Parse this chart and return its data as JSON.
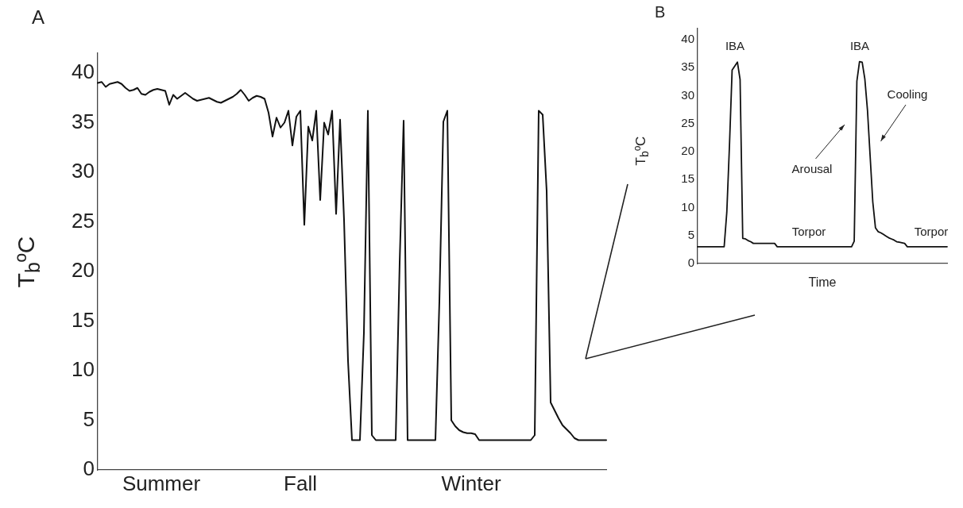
{
  "chart_data": [
    {
      "type": "line",
      "title": "A",
      "ylabel": "T$_{b}$ºC",
      "categories": [
        null,
        null,
        null,
        null,
        null,
        null,
        null,
        null,
        null,
        null,
        null,
        null,
        null,
        null,
        null,
        null,
        "Summer",
        null,
        null,
        null,
        null,
        null,
        null,
        null,
        null,
        null,
        null,
        null,
        null,
        null,
        null,
        null,
        null,
        null,
        null,
        null,
        null,
        null,
        null,
        null,
        null,
        null,
        null,
        null,
        null,
        null,
        null,
        null,
        null,
        null,
        null,
        "Fall",
        null,
        null,
        null,
        null,
        null,
        null,
        null,
        null,
        null,
        null,
        null,
        null,
        null,
        null,
        null,
        null,
        null,
        null,
        null,
        null,
        null,
        null,
        null,
        null,
        null,
        null,
        null,
        null,
        null,
        null,
        null,
        null,
        null,
        null,
        null,
        null,
        null,
        null,
        null,
        null,
        null,
        null,
        "Winter",
        null,
        null,
        null,
        null,
        null,
        null,
        null,
        null,
        null,
        null,
        null,
        null,
        null,
        null,
        null,
        null,
        null,
        null,
        null,
        null,
        null,
        null,
        null,
        null,
        null,
        null,
        null,
        null,
        null,
        null,
        null,
        null,
        null,
        null
      ],
      "series": [
        {
          "color": "#111111",
          "values": [
            39.0,
            39.1,
            38.6,
            38.9,
            39.0,
            39.1,
            38.9,
            38.5,
            38.2,
            38.3,
            38.5,
            37.9,
            37.8,
            38.1,
            38.3,
            38.4,
            38.3,
            38.2,
            36.8,
            37.8,
            37.4,
            37.7,
            38.0,
            37.7,
            37.4,
            37.2,
            37.3,
            37.4,
            37.5,
            37.3,
            37.1,
            37.0,
            37.2,
            37.4,
            37.6,
            37.9,
            38.3,
            37.8,
            37.2,
            37.5,
            37.7,
            37.6,
            37.4,
            36.0,
            33.6,
            35.5,
            34.5,
            35.0,
            36.2,
            32.7,
            35.6,
            36.2,
            24.7,
            34.6,
            33.2,
            36.2,
            27.2,
            35.0,
            33.8,
            36.2,
            25.8,
            35.3,
            25.2,
            11,
            3,
            3,
            3,
            13.8,
            36.2,
            3.5,
            3,
            3,
            3,
            3,
            3,
            3,
            20.9,
            35.2,
            3,
            3,
            3,
            3,
            3,
            3,
            3,
            3,
            17,
            35.1,
            36.2,
            5.0,
            4.4,
            4.0,
            3.8,
            3.7,
            3.7,
            3.6,
            3,
            3,
            3,
            3,
            3,
            3,
            3,
            3,
            3,
            3,
            3,
            3,
            3,
            3,
            3.5,
            36.2,
            35.8,
            28.1,
            6.8,
            6.0,
            5.2,
            4.5,
            4.1,
            3.7,
            3.2,
            3,
            3,
            3,
            3,
            3,
            3,
            3,
            3
          ]
        }
      ],
      "ylim": [
        0,
        42
      ],
      "yticks": [
        0,
        5,
        10,
        15,
        20,
        25,
        30,
        35,
        40
      ],
      "grid": false,
      "marker": "none",
      "line_style": "solid"
    },
    {
      "type": "line",
      "title": "B",
      "ylabel": "T$_{b}$ºC",
      "xlabel": "Time",
      "categories": [
        null,
        null,
        null,
        null,
        null,
        null,
        null,
        null,
        null,
        null,
        null,
        null,
        null,
        null,
        null,
        null,
        null,
        null,
        null,
        null,
        null,
        null,
        null,
        null,
        null,
        null,
        null,
        null,
        null,
        null,
        null,
        null,
        null,
        null,
        null,
        null,
        null,
        null,
        null,
        null,
        null,
        null,
        null,
        null,
        null,
        null,
        null,
        null,
        null,
        null,
        null,
        null,
        null,
        null,
        null,
        null,
        null,
        null,
        null,
        null,
        null,
        null,
        null,
        null,
        null,
        null,
        null,
        null,
        null,
        null,
        null,
        null,
        null,
        null,
        null,
        null,
        null,
        null,
        null,
        null,
        null,
        null,
        null,
        null,
        null,
        null,
        null,
        null,
        null,
        null,
        null,
        null,
        null,
        null,
        null
      ],
      "series": [
        {
          "color": "#111111",
          "values": [
            3,
            3,
            3,
            3,
            3,
            3,
            3,
            3,
            3,
            3,
            3,
            9.2,
            21.1,
            34.6,
            35.3,
            36.0,
            32.9,
            4.5,
            4.4,
            4.1,
            3.9,
            3.6,
            3.6,
            3.6,
            3.6,
            3.6,
            3.6,
            3.6,
            3.6,
            3.6,
            3,
            3,
            3,
            3,
            3,
            3,
            3,
            3,
            3,
            3,
            3,
            3,
            3,
            3,
            3,
            3,
            3,
            3,
            3,
            3,
            3,
            3,
            3,
            3,
            3,
            3,
            3,
            3,
            3,
            4.0,
            32.6,
            36.1,
            36.0,
            33,
            27.4,
            19.2,
            11.0,
            6.4,
            5.7,
            5.5,
            5.2,
            4.9,
            4.6,
            4.4,
            4.2,
            3.9,
            3.8,
            3.7,
            3.6,
            3,
            3,
            3,
            3,
            3,
            3,
            3,
            3,
            3,
            3,
            3,
            3,
            3,
            3,
            3,
            3
          ]
        }
      ],
      "ylim": [
        0,
        42
      ],
      "yticks": [
        0,
        5,
        10,
        15,
        20,
        25,
        30,
        35,
        40
      ],
      "tick_labels": "y",
      "grid": false,
      "marker": "none",
      "line_style": "solid",
      "annotations": [
        "IBA",
        "IBA",
        "Cooling",
        "Arousal",
        "Torpor",
        "Torpor"
      ]
    }
  ]
}
